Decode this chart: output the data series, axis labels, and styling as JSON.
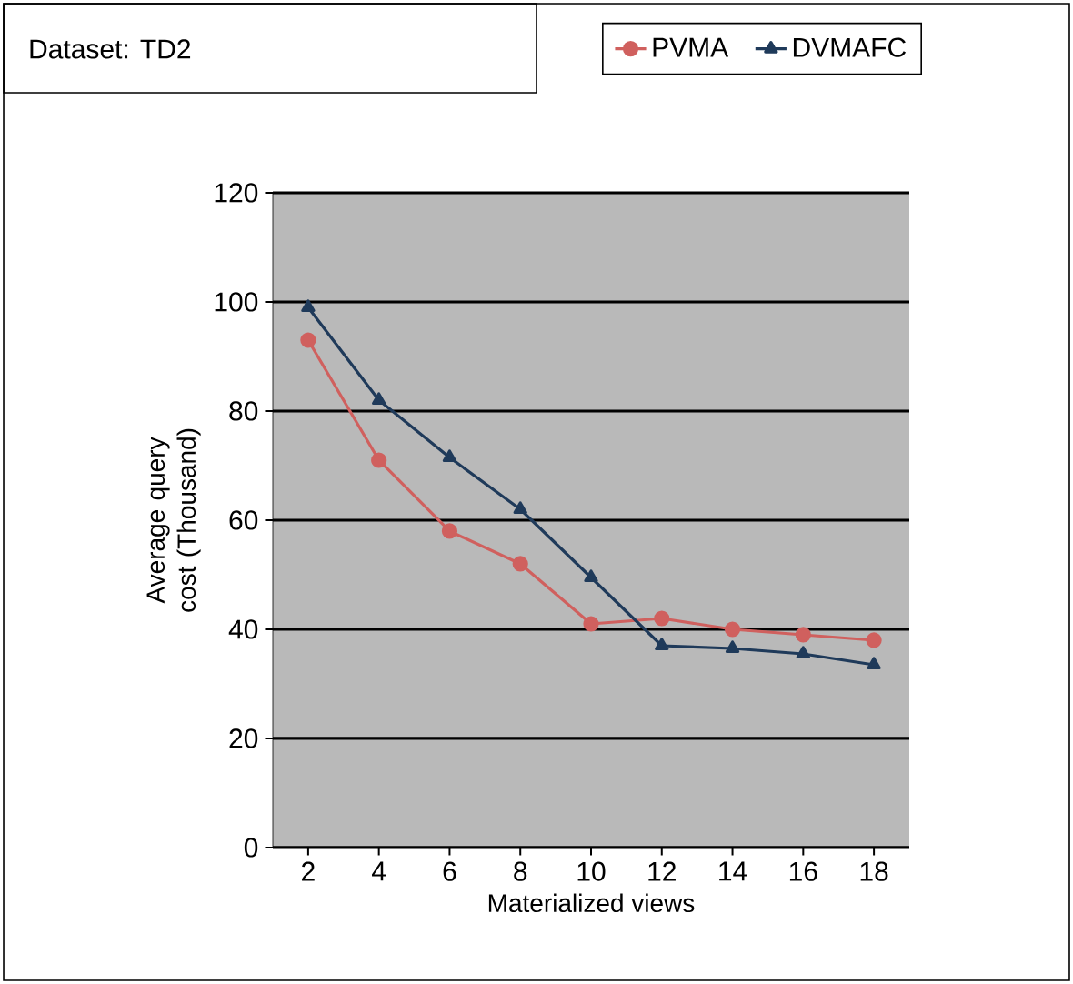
{
  "chart_data": {
    "type": "line",
    "title": "Dataset: TD2",
    "xlabel": "Materialized views",
    "ylabel": "Average query cost (Thousand)",
    "categories": [
      "2",
      "4",
      "6",
      "8",
      "10",
      "12",
      "14",
      "16",
      "18"
    ],
    "series": [
      {
        "name": "PVMA",
        "color": "#d0605e",
        "marker": "circle",
        "values": [
          93,
          71,
          58,
          52,
          41,
          42,
          40,
          39,
          38
        ]
      },
      {
        "name": "DVMAFC",
        "color": "#1f3a5a",
        "marker": "triangle",
        "values": [
          99,
          82,
          71.5,
          62,
          49.5,
          37,
          36.5,
          35.5,
          33.5
        ]
      }
    ],
    "ylim": [
      0,
      120
    ],
    "yticks": [
      0,
      20,
      40,
      60,
      80,
      100,
      120
    ],
    "grid": "y",
    "legend": "top right"
  }
}
